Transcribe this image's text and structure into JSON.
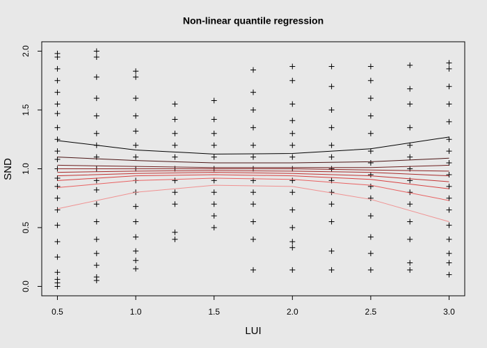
{
  "chart_data": {
    "type": "scatter",
    "title": "Non-linear quantile regression",
    "x_label": "LUI",
    "y_label": "SND",
    "xlim": [
      0.4,
      3.1
    ],
    "ylim": [
      -0.08,
      2.08
    ],
    "xticks": [
      0.5,
      {
        "value": 1,
        "label": "1.0"
      },
      1.5,
      {
        "value": 2,
        "label": "2.0"
      },
      2.5,
      {
        "value": 3,
        "label": "3.0"
      }
    ],
    "yticks": [
      {
        "value": 0,
        "label": "0.0"
      },
      0.5,
      {
        "value": 1,
        "label": "1.0"
      },
      1.5,
      {
        "value": 2,
        "label": "2.0"
      }
    ],
    "point_color": "#000000",
    "columns": [
      {
        "x": 0.5,
        "y": [
          0.0,
          0.03,
          0.06,
          0.12,
          0.25,
          0.38,
          0.52,
          0.65,
          0.75,
          0.85,
          0.92,
          1.0,
          1.08,
          1.15,
          1.25,
          1.35,
          1.47,
          1.55,
          1.65,
          1.75,
          1.85,
          1.95,
          1.98
        ]
      },
      {
        "x": 0.75,
        "y": [
          0.05,
          0.08,
          0.18,
          0.28,
          0.4,
          0.55,
          0.7,
          0.82,
          0.9,
          1.0,
          1.1,
          1.2,
          1.3,
          1.45,
          1.6,
          1.78,
          1.95,
          2.0
        ]
      },
      {
        "x": 1.0,
        "y": [
          0.15,
          0.22,
          0.3,
          0.42,
          0.55,
          0.68,
          0.8,
          0.9,
          1.0,
          1.1,
          1.2,
          1.32,
          1.45,
          1.6,
          1.78,
          1.83
        ]
      },
      {
        "x": 1.25,
        "y": [
          0.4,
          0.46,
          0.7,
          0.8,
          0.9,
          1.0,
          1.1,
          1.2,
          1.3,
          1.42,
          1.55
        ]
      },
      {
        "x": 1.5,
        "y": [
          0.5,
          0.6,
          0.7,
          0.8,
          0.9,
          1.0,
          1.1,
          1.2,
          1.3,
          1.42,
          1.58
        ]
      },
      {
        "x": 1.75,
        "y": [
          0.14,
          0.4,
          0.55,
          0.7,
          0.8,
          0.9,
          1.0,
          1.1,
          1.2,
          1.35,
          1.5,
          1.65,
          1.84
        ]
      },
      {
        "x": 2.0,
        "y": [
          0.14,
          0.33,
          0.38,
          0.5,
          0.65,
          0.8,
          0.9,
          1.0,
          1.1,
          1.2,
          1.3,
          1.41,
          1.55,
          1.75,
          1.87
        ]
      },
      {
        "x": 2.25,
        "y": [
          0.14,
          0.3,
          0.55,
          0.7,
          0.8,
          0.9,
          1.0,
          1.1,
          1.2,
          1.35,
          1.5,
          1.7,
          1.87
        ]
      },
      {
        "x": 2.5,
        "y": [
          0.14,
          0.28,
          0.42,
          0.6,
          0.75,
          0.85,
          0.95,
          1.05,
          1.15,
          1.3,
          1.45,
          1.6,
          1.75,
          1.87
        ]
      },
      {
        "x": 2.75,
        "y": [
          0.14,
          0.2,
          0.4,
          0.55,
          0.7,
          0.8,
          0.9,
          1.0,
          1.1,
          1.2,
          1.35,
          1.55,
          1.68,
          1.88
        ]
      },
      {
        "x": 3.0,
        "y": [
          0.1,
          0.2,
          0.28,
          0.4,
          0.52,
          0.65,
          0.75,
          0.85,
          0.95,
          1.05,
          1.15,
          1.25,
          1.4,
          1.55,
          1.7,
          1.85,
          1.9
        ]
      }
    ],
    "curve_x": [
      0.5,
      1.0,
      1.5,
      2.0,
      2.5,
      3.0
    ],
    "curves": [
      {
        "color": "#000000",
        "values": [
          1.24,
          1.16,
          1.125,
          1.13,
          1.17,
          1.27
        ]
      },
      {
        "color": "#4a1414",
        "values": [
          1.1,
          1.07,
          1.05,
          1.05,
          1.06,
          1.09
        ]
      },
      {
        "color": "#6e1e1e",
        "values": [
          1.03,
          1.02,
          1.01,
          1.01,
          1.01,
          1.03
        ]
      },
      {
        "color": "#8e2424",
        "values": [
          1.0,
          1.0,
          1.0,
          1.0,
          0.99,
          0.98
        ]
      },
      {
        "color": "#a82a2a",
        "values": [
          0.97,
          0.98,
          0.985,
          0.98,
          0.97,
          0.94
        ]
      },
      {
        "color": "#c23232",
        "values": [
          0.94,
          0.96,
          0.97,
          0.96,
          0.94,
          0.89
        ]
      },
      {
        "color": "#d84040",
        "values": [
          0.9,
          0.94,
          0.95,
          0.94,
          0.91,
          0.83
        ]
      },
      {
        "color": "#e86060",
        "values": [
          0.84,
          0.9,
          0.92,
          0.91,
          0.86,
          0.73
        ]
      },
      {
        "color": "#f09090",
        "values": [
          0.66,
          0.8,
          0.86,
          0.85,
          0.74,
          0.55
        ]
      }
    ]
  }
}
